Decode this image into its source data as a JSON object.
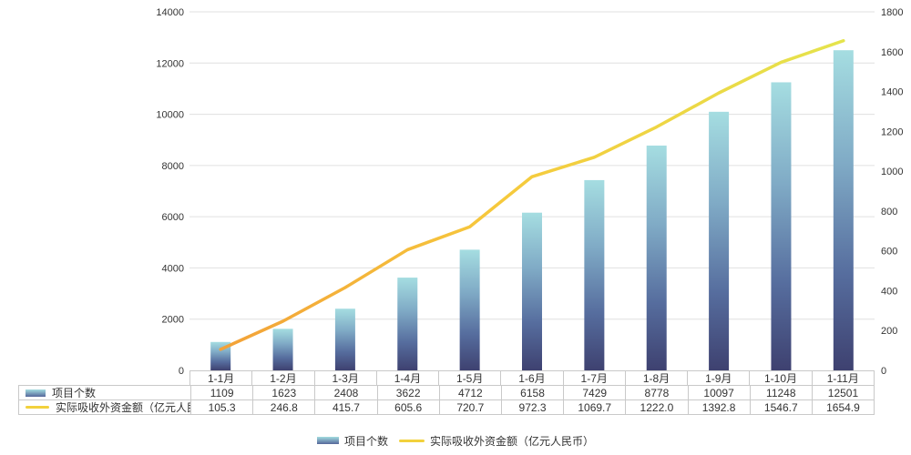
{
  "chart_data": {
    "type": "bar",
    "note": "combo chart: bar series on left axis + line series on right axis, data table under x-axis",
    "categories": [
      "1-1月",
      "1-2月",
      "1-3月",
      "1-4月",
      "1-5月",
      "1-6月",
      "1-7月",
      "1-8月",
      "1-9月",
      "1-10月",
      "1-11月"
    ],
    "series": [
      {
        "name": "项目个数",
        "kind": "bar",
        "axis": "left",
        "values": [
          1109,
          1623,
          2408,
          3622,
          4712,
          6158,
          7429,
          8778,
          10097,
          11248,
          12501
        ],
        "decimals": 0
      },
      {
        "name": "实际吸收外资金额（亿元人民币）",
        "kind": "line",
        "axis": "right",
        "values": [
          105.3,
          246.8,
          415.7,
          605.6,
          720.7,
          972.3,
          1069.7,
          1222.0,
          1392.8,
          1546.7,
          1654.9
        ],
        "decimals": 1
      }
    ],
    "left_axis": {
      "min": 0,
      "max": 14000,
      "step": 2000,
      "ticks": [
        0,
        2000,
        4000,
        6000,
        8000,
        10000,
        12000,
        14000
      ]
    },
    "right_axis": {
      "min": 0,
      "max": 1800,
      "step": 200,
      "ticks": [
        0,
        200,
        400,
        600,
        800,
        1000,
        1200,
        1400,
        1600,
        1800
      ]
    },
    "grid": true,
    "legend_position": "bottom",
    "data_table_visible": true,
    "title": ""
  },
  "colors": {
    "bar_top": "#a5dde1",
    "bar_upper_mid": "#80abc6",
    "bar_lower_mid": "#566d9e",
    "bar_bottom": "#3e4170",
    "line_start": "#f29d38",
    "line_mid": "#f6c93c",
    "line_end": "#e3e64e",
    "legend_line": "#f2d13c",
    "legend_bar_top": "#a3dce0",
    "legend_bar_bottom": "#55679a",
    "grid_line": "#e0e0e0",
    "table_border": "#c9c9c9",
    "text": "#333333",
    "background": "#ffffff"
  },
  "legend": {
    "items": [
      {
        "label": "项目个数",
        "swatch": "bar"
      },
      {
        "label": "实际吸收外资金额（亿元人民币）",
        "swatch": "line"
      }
    ]
  }
}
